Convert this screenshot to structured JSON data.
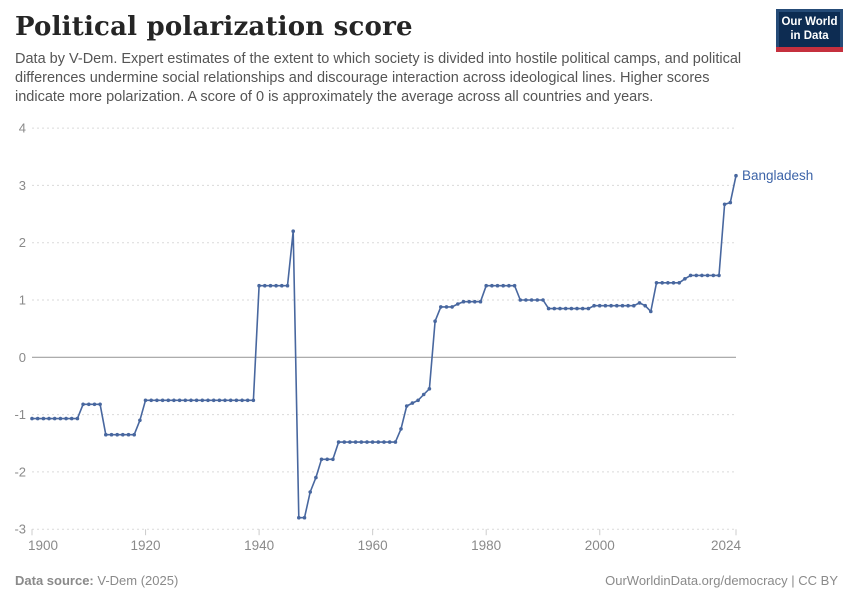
{
  "header": {
    "title": "Political polarization score",
    "subtitle": "Data by V-Dem. Expert estimates of the extent to which society is divided into hostile political camps, and political differences undermine social relationships and discourage interaction across ideological lines. Higher scores indicate more polarization. A score of 0 is approximately the average across all countries and years.",
    "logo": {
      "line1": "Our World",
      "line2": "in Data",
      "bg_color": "#0d2c52",
      "stripe_color": "#c5303e"
    }
  },
  "footer": {
    "source_label": "Data source:",
    "source_value": " V-Dem (2025)",
    "right_text": "OurWorldinData.org/democracy | CC BY"
  },
  "chart_data": {
    "type": "line",
    "title": "Political polarization score",
    "entity_label": "Bangladesh",
    "line_color": "#48679f",
    "label_color": "#3d64a8",
    "grid_color": "#dadada",
    "zero_line_color": "#a0a0a0",
    "axis_text_color": "#8a8a8a",
    "xlim": [
      1900,
      2024
    ],
    "ylim": [
      -3,
      4
    ],
    "x_ticks": [
      1900,
      1920,
      1940,
      1960,
      1980,
      2000,
      2024
    ],
    "y_ticks": [
      4,
      3,
      2,
      1,
      0,
      -1,
      -2,
      -3
    ],
    "grid": "horizontal dashed gridlines, solid zero line",
    "legend": "entity label at right end of line",
    "series": [
      {
        "name": "Bangladesh",
        "points": [
          [
            1900,
            -1.07
          ],
          [
            1901,
            -1.07
          ],
          [
            1902,
            -1.07
          ],
          [
            1903,
            -1.07
          ],
          [
            1904,
            -1.07
          ],
          [
            1905,
            -1.07
          ],
          [
            1906,
            -1.07
          ],
          [
            1907,
            -1.07
          ],
          [
            1908,
            -1.07
          ],
          [
            1909,
            -0.82
          ],
          [
            1910,
            -0.82
          ],
          [
            1911,
            -0.82
          ],
          [
            1912,
            -0.82
          ],
          [
            1913,
            -1.35
          ],
          [
            1914,
            -1.35
          ],
          [
            1915,
            -1.35
          ],
          [
            1916,
            -1.35
          ],
          [
            1917,
            -1.35
          ],
          [
            1918,
            -1.35
          ],
          [
            1919,
            -1.1
          ],
          [
            1920,
            -0.75
          ],
          [
            1921,
            -0.75
          ],
          [
            1922,
            -0.75
          ],
          [
            1923,
            -0.75
          ],
          [
            1924,
            -0.75
          ],
          [
            1925,
            -0.75
          ],
          [
            1926,
            -0.75
          ],
          [
            1927,
            -0.75
          ],
          [
            1928,
            -0.75
          ],
          [
            1929,
            -0.75
          ],
          [
            1930,
            -0.75
          ],
          [
            1931,
            -0.75
          ],
          [
            1932,
            -0.75
          ],
          [
            1933,
            -0.75
          ],
          [
            1934,
            -0.75
          ],
          [
            1935,
            -0.75
          ],
          [
            1936,
            -0.75
          ],
          [
            1937,
            -0.75
          ],
          [
            1938,
            -0.75
          ],
          [
            1939,
            -0.75
          ],
          [
            1940,
            1.25
          ],
          [
            1941,
            1.25
          ],
          [
            1942,
            1.25
          ],
          [
            1943,
            1.25
          ],
          [
            1944,
            1.25
          ],
          [
            1945,
            1.25
          ],
          [
            1946,
            2.2
          ],
          [
            1947,
            -2.8
          ],
          [
            1948,
            -2.8
          ],
          [
            1949,
            -2.35
          ],
          [
            1950,
            -2.1
          ],
          [
            1951,
            -1.78
          ],
          [
            1952,
            -1.78
          ],
          [
            1953,
            -1.78
          ],
          [
            1954,
            -1.48
          ],
          [
            1955,
            -1.48
          ],
          [
            1956,
            -1.48
          ],
          [
            1957,
            -1.48
          ],
          [
            1958,
            -1.48
          ],
          [
            1959,
            -1.48
          ],
          [
            1960,
            -1.48
          ],
          [
            1961,
            -1.48
          ],
          [
            1962,
            -1.48
          ],
          [
            1963,
            -1.48
          ],
          [
            1964,
            -1.48
          ],
          [
            1965,
            -1.25
          ],
          [
            1966,
            -0.85
          ],
          [
            1967,
            -0.8
          ],
          [
            1968,
            -0.75
          ],
          [
            1969,
            -0.65
          ],
          [
            1970,
            -0.55
          ],
          [
            1971,
            0.63
          ],
          [
            1972,
            0.88
          ],
          [
            1973,
            0.88
          ],
          [
            1974,
            0.88
          ],
          [
            1975,
            0.93
          ],
          [
            1976,
            0.97
          ],
          [
            1977,
            0.97
          ],
          [
            1978,
            0.97
          ],
          [
            1979,
            0.97
          ],
          [
            1980,
            1.25
          ],
          [
            1981,
            1.25
          ],
          [
            1982,
            1.25
          ],
          [
            1983,
            1.25
          ],
          [
            1984,
            1.25
          ],
          [
            1985,
            1.25
          ],
          [
            1986,
            1.0
          ],
          [
            1987,
            1.0
          ],
          [
            1988,
            1.0
          ],
          [
            1989,
            1.0
          ],
          [
            1990,
            1.0
          ],
          [
            1991,
            0.85
          ],
          [
            1992,
            0.85
          ],
          [
            1993,
            0.85
          ],
          [
            1994,
            0.85
          ],
          [
            1995,
            0.85
          ],
          [
            1996,
            0.85
          ],
          [
            1997,
            0.85
          ],
          [
            1998,
            0.85
          ],
          [
            1999,
            0.9
          ],
          [
            2000,
            0.9
          ],
          [
            2001,
            0.9
          ],
          [
            2002,
            0.9
          ],
          [
            2003,
            0.9
          ],
          [
            2004,
            0.9
          ],
          [
            2005,
            0.9
          ],
          [
            2006,
            0.9
          ],
          [
            2007,
            0.95
          ],
          [
            2008,
            0.9
          ],
          [
            2009,
            0.8
          ],
          [
            2010,
            1.3
          ],
          [
            2011,
            1.3
          ],
          [
            2012,
            1.3
          ],
          [
            2013,
            1.3
          ],
          [
            2014,
            1.3
          ],
          [
            2015,
            1.37
          ],
          [
            2016,
            1.43
          ],
          [
            2017,
            1.43
          ],
          [
            2018,
            1.43
          ],
          [
            2019,
            1.43
          ],
          [
            2020,
            1.43
          ],
          [
            2021,
            1.43
          ],
          [
            2022,
            2.67
          ],
          [
            2023,
            2.7
          ],
          [
            2024,
            3.17
          ]
        ]
      }
    ]
  }
}
